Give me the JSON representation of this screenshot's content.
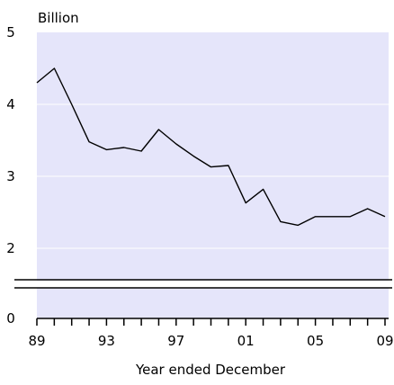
{
  "chart_data": {
    "type": "line",
    "unit_label": "Billion",
    "xlabel": "Year ended December",
    "ylabel": "",
    "ylim": [
      0,
      5
    ],
    "y_ticks": [
      {
        "value": 0,
        "label": "0"
      },
      {
        "value": 2,
        "label": "2"
      },
      {
        "value": 3,
        "label": "3"
      },
      {
        "value": 4,
        "label": "4"
      },
      {
        "value": 5,
        "label": "5"
      }
    ],
    "axis_break": true,
    "x_range": [
      1989,
      2009
    ],
    "x_ticks": [
      {
        "value": 1989,
        "label": "89"
      },
      {
        "value": 1993,
        "label": "93"
      },
      {
        "value": 1997,
        "label": "97"
      },
      {
        "value": 2001,
        "label": "01"
      },
      {
        "value": 2005,
        "label": "05"
      },
      {
        "value": 2009,
        "label": "09"
      }
    ],
    "x": [
      1989,
      1990,
      1991,
      1992,
      1993,
      1994,
      1995,
      1996,
      1997,
      1998,
      1999,
      2000,
      2001,
      2002,
      2003,
      2004,
      2005,
      2006,
      2007,
      2008,
      2009
    ],
    "series": [
      {
        "values": [
          4.3,
          4.5,
          4.0,
          3.48,
          3.37,
          3.4,
          3.35,
          3.65,
          3.45,
          3.28,
          3.13,
          3.15,
          2.63,
          2.82,
          2.37,
          2.32,
          2.44,
          2.44,
          2.44,
          2.55,
          2.44
        ]
      }
    ],
    "grid": "horizontal",
    "colors": {
      "plot_background": "#e5e5fa",
      "grid": "#ffffff",
      "line": "#000000"
    }
  }
}
